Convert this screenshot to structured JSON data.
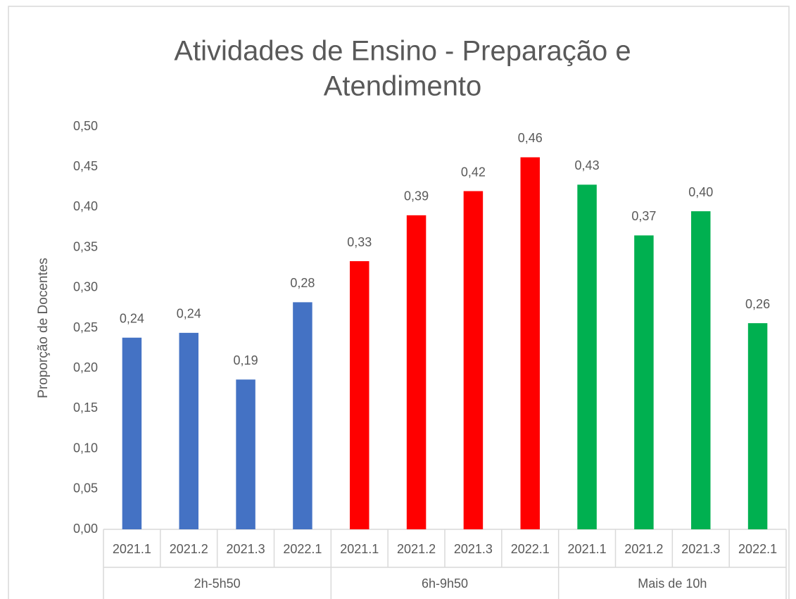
{
  "chart_data": {
    "type": "bar",
    "title": [
      "Atividades de Ensino - Preparação e",
      "Atendimento"
    ],
    "y_label": "Proporção de Docentes",
    "ylim": [
      0,
      0.5
    ],
    "yticks": [
      {
        "value": 0,
        "label": "0,00"
      },
      {
        "value": 0.05,
        "label": "0,05"
      },
      {
        "value": 0.1,
        "label": "0,10"
      },
      {
        "value": 0.15,
        "label": "0,15"
      },
      {
        "value": 0.2,
        "label": "0,20"
      },
      {
        "value": 0.25,
        "label": "0,25"
      },
      {
        "value": 0.3,
        "label": "0,30"
      },
      {
        "value": 0.35,
        "label": "0,35"
      },
      {
        "value": 0.4,
        "label": "0,40"
      },
      {
        "value": 0.45,
        "label": "0,45"
      },
      {
        "value": 0.5,
        "label": "0,50"
      }
    ],
    "grid": false,
    "groups": [
      {
        "label": "2h-5h50",
        "color": "#4472c4",
        "categories": [
          "2021.1",
          "2021.2",
          "2021.3",
          "2022.1"
        ],
        "values": [
          0.238,
          0.244,
          0.186,
          0.282
        ],
        "value_labels": [
          "0,24",
          "0,24",
          "0,19",
          "0,28"
        ]
      },
      {
        "label": "6h-9h50",
        "color": "#ff0000",
        "categories": [
          "2021.1",
          "2021.2",
          "2021.3",
          "2022.1"
        ],
        "values": [
          0.333,
          0.39,
          0.42,
          0.462
        ],
        "value_labels": [
          "0,33",
          "0,39",
          "0,42",
          "0,46"
        ]
      },
      {
        "label": "Mais de 10h",
        "color": "#00b050",
        "categories": [
          "2021.1",
          "2021.2",
          "2021.3",
          "2022.1"
        ],
        "values": [
          0.428,
          0.365,
          0.395,
          0.256
        ],
        "value_labels": [
          "0,43",
          "0,37",
          "0,40",
          "0,26"
        ]
      }
    ]
  }
}
